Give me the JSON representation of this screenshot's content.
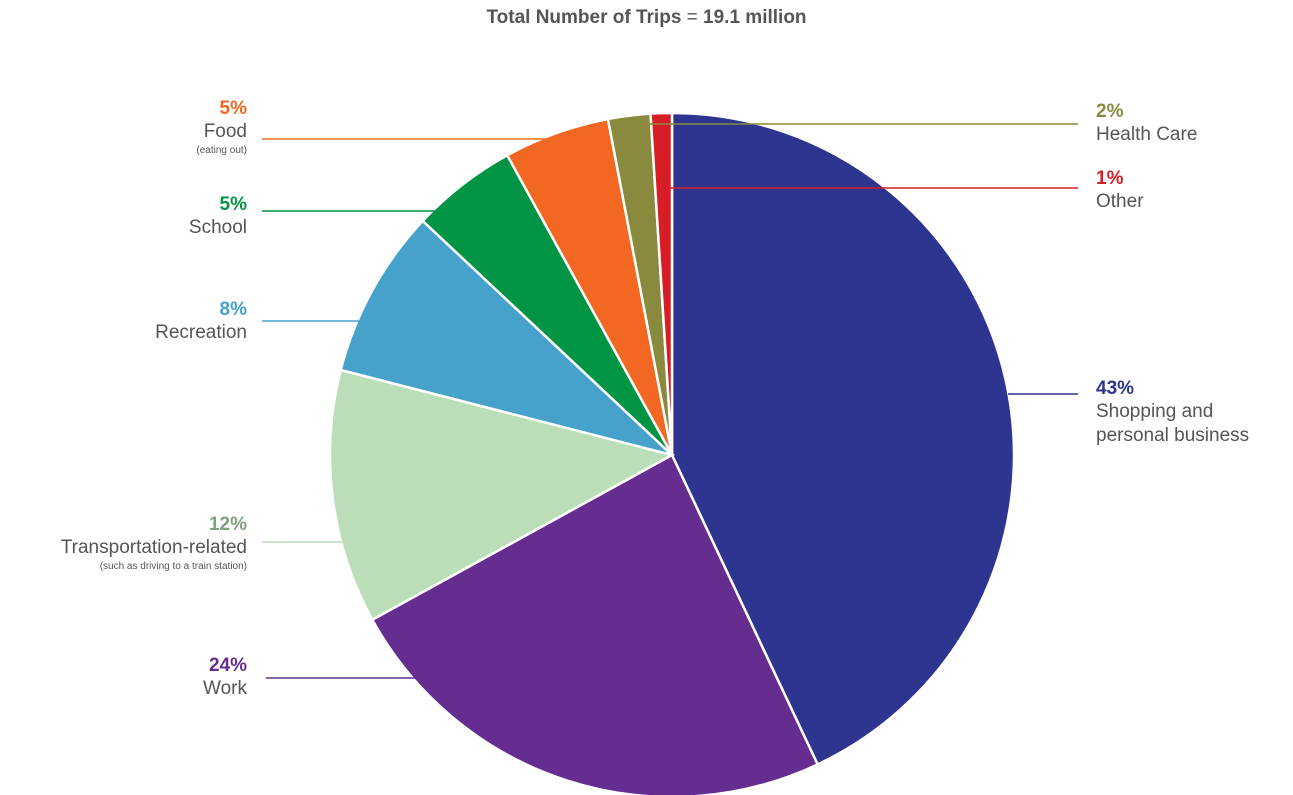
{
  "chart_data": {
    "type": "pie",
    "title": "Total Number of Trips",
    "title_value": "19.1 million",
    "title_separator": " = ",
    "slices": [
      {
        "key": "shopping",
        "pct": 43,
        "pct_label": "43%",
        "name": "Shopping and personal business",
        "name_line2": "",
        "note": "",
        "color": "#2e3590"
      },
      {
        "key": "work",
        "pct": 24,
        "pct_label": "24%",
        "name": "Work",
        "note": "",
        "color": "#652d90"
      },
      {
        "key": "transport",
        "pct": 12,
        "pct_label": "12%",
        "name": "Transportation-related",
        "note": "(such as driving to a train station)",
        "color": "#bbdeb9",
        "label_color": "#7fa17d"
      },
      {
        "key": "recreation",
        "pct": 8,
        "pct_label": "8%",
        "name": "Recreation",
        "note": "",
        "color": "#46a2cb"
      },
      {
        "key": "school",
        "pct": 5,
        "pct_label": "5%",
        "name": "School",
        "note": "",
        "color": "#009444"
      },
      {
        "key": "food",
        "pct": 5,
        "pct_label": "5%",
        "name": "Food",
        "note": "(eating out)",
        "color": "#f26822"
      },
      {
        "key": "health",
        "pct": 2,
        "pct_label": "2%",
        "name": "Health Care",
        "note": "",
        "color": "#8a8a3e"
      },
      {
        "key": "other",
        "pct": 1,
        "pct_label": "1%",
        "name": "Other",
        "note": "",
        "color": "#d71e26"
      }
    ],
    "shopping_name_lines": [
      "Shopping and",
      "personal business"
    ]
  }
}
